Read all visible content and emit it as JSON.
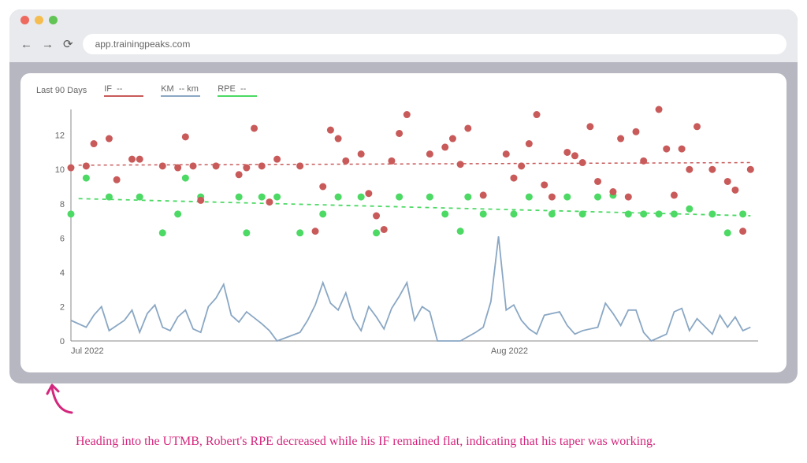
{
  "browser": {
    "url": "app.trainingpeaks.com",
    "traffic_lights": [
      "#ee6a5f",
      "#f5bd4f",
      "#61c454"
    ]
  },
  "chart": {
    "type": "scatter+line",
    "timeframe_label": "Last 90 Days",
    "background_color": "#ffffff",
    "axis_color": "#888",
    "grid_color": "#e0e0e0",
    "text_color": "#666",
    "label_fontsize": 11,
    "x_axis": {
      "ticks": [
        {
          "x": 0,
          "label": "Jul 2022"
        },
        {
          "x": 55,
          "label": "Aug 2022"
        }
      ],
      "xlim": [
        0,
        90
      ]
    },
    "y_axis": {
      "ylim": [
        0,
        13.5
      ],
      "ticks": [
        0,
        2,
        4,
        6,
        8,
        10,
        12
      ]
    },
    "series": {
      "IF": {
        "legend_label": "IF",
        "legend_value": "--",
        "color": "#c95a5a",
        "marker": "circle",
        "marker_size": 4.5,
        "trend": {
          "y_start": 10.25,
          "y_end": 10.4,
          "dash": "4,4",
          "width": 1.5
        },
        "points": [
          [
            0,
            10.1
          ],
          [
            2,
            10.2
          ],
          [
            3,
            11.5
          ],
          [
            5,
            11.8
          ],
          [
            6,
            9.4
          ],
          [
            8,
            10.6
          ],
          [
            9,
            10.6
          ],
          [
            12,
            10.2
          ],
          [
            14,
            10.1
          ],
          [
            15,
            11.9
          ],
          [
            16,
            10.2
          ],
          [
            17,
            8.2
          ],
          [
            19,
            10.2
          ],
          [
            22,
            9.7
          ],
          [
            23,
            10.1
          ],
          [
            24,
            12.4
          ],
          [
            25,
            10.2
          ],
          [
            26,
            8.1
          ],
          [
            27,
            10.6
          ],
          [
            30,
            10.2
          ],
          [
            32,
            6.4
          ],
          [
            33,
            9.0
          ],
          [
            34,
            12.3
          ],
          [
            35,
            11.8
          ],
          [
            36,
            10.5
          ],
          [
            38,
            10.9
          ],
          [
            39,
            8.6
          ],
          [
            40,
            7.3
          ],
          [
            41,
            6.5
          ],
          [
            42,
            10.5
          ],
          [
            43,
            12.1
          ],
          [
            44,
            13.2
          ],
          [
            47,
            10.9
          ],
          [
            49,
            11.3
          ],
          [
            50,
            11.8
          ],
          [
            51,
            10.3
          ],
          [
            52,
            12.4
          ],
          [
            54,
            8.5
          ],
          [
            57,
            10.9
          ],
          [
            58,
            9.5
          ],
          [
            59,
            10.2
          ],
          [
            60,
            11.5
          ],
          [
            61,
            13.2
          ],
          [
            62,
            9.1
          ],
          [
            63,
            8.4
          ],
          [
            65,
            11.0
          ],
          [
            66,
            10.8
          ],
          [
            67,
            10.4
          ],
          [
            68,
            12.5
          ],
          [
            69,
            9.3
          ],
          [
            71,
            8.7
          ],
          [
            72,
            11.8
          ],
          [
            73,
            8.4
          ],
          [
            74,
            12.2
          ],
          [
            75,
            10.5
          ],
          [
            77,
            13.5
          ],
          [
            78,
            11.2
          ],
          [
            79,
            8.5
          ],
          [
            80,
            11.2
          ],
          [
            81,
            10.0
          ],
          [
            82,
            12.5
          ],
          [
            84,
            10.0
          ],
          [
            86,
            9.3
          ],
          [
            87,
            8.8
          ],
          [
            88,
            6.4
          ],
          [
            89,
            10.0
          ]
        ]
      },
      "KM": {
        "legend_label": "KM",
        "legend_value": "-- km",
        "color": "#8aa7c4",
        "line_width": 1.8,
        "points": [
          [
            0,
            1.2
          ],
          [
            2,
            0.8
          ],
          [
            3,
            1.5
          ],
          [
            4,
            2.0
          ],
          [
            5,
            0.6
          ],
          [
            7,
            1.2
          ],
          [
            8,
            1.8
          ],
          [
            9,
            0.5
          ],
          [
            10,
            1.6
          ],
          [
            11,
            2.1
          ],
          [
            12,
            0.8
          ],
          [
            13,
            0.6
          ],
          [
            14,
            1.4
          ],
          [
            15,
            1.8
          ],
          [
            16,
            0.7
          ],
          [
            17,
            0.5
          ],
          [
            18,
            2.0
          ],
          [
            19,
            2.5
          ],
          [
            20,
            3.3
          ],
          [
            21,
            1.5
          ],
          [
            22,
            1.1
          ],
          [
            23,
            1.7
          ],
          [
            25,
            1.0
          ],
          [
            26,
            0.6
          ],
          [
            27,
            0
          ],
          [
            30,
            0.5
          ],
          [
            31,
            1.2
          ],
          [
            32,
            2.1
          ],
          [
            33,
            3.4
          ],
          [
            34,
            2.2
          ],
          [
            35,
            1.8
          ],
          [
            36,
            2.8
          ],
          [
            37,
            1.3
          ],
          [
            38,
            0.6
          ],
          [
            39,
            2.0
          ],
          [
            40,
            1.4
          ],
          [
            41,
            0.7
          ],
          [
            42,
            1.9
          ],
          [
            43,
            2.6
          ],
          [
            44,
            3.4
          ],
          [
            45,
            1.2
          ],
          [
            46,
            2.0
          ],
          [
            47,
            1.7
          ],
          [
            48,
            0
          ],
          [
            51,
            0
          ],
          [
            53,
            0.5
          ],
          [
            54,
            0.8
          ],
          [
            55,
            2.3
          ],
          [
            56,
            6.1
          ],
          [
            57,
            1.8
          ],
          [
            58,
            2.1
          ],
          [
            59,
            1.2
          ],
          [
            60,
            0.7
          ],
          [
            61,
            0.4
          ],
          [
            62,
            1.5
          ],
          [
            64,
            1.7
          ],
          [
            65,
            0.9
          ],
          [
            66,
            0.4
          ],
          [
            67,
            0.6
          ],
          [
            69,
            0.8
          ],
          [
            70,
            2.2
          ],
          [
            71,
            1.6
          ],
          [
            72,
            0.9
          ],
          [
            73,
            1.8
          ],
          [
            74,
            1.8
          ],
          [
            75,
            0.5
          ],
          [
            76,
            0
          ],
          [
            78,
            0.4
          ],
          [
            79,
            1.7
          ],
          [
            80,
            1.9
          ],
          [
            81,
            0.6
          ],
          [
            82,
            1.3
          ],
          [
            84,
            0.4
          ],
          [
            85,
            1.5
          ],
          [
            86,
            0.8
          ],
          [
            87,
            1.4
          ],
          [
            88,
            0.6
          ],
          [
            89,
            0.8
          ]
        ]
      },
      "RPE": {
        "legend_label": "RPE",
        "legend_value": "--",
        "color": "#4cd964",
        "marker": "circle",
        "marker_size": 4.5,
        "trend": {
          "y_start": 8.3,
          "y_end": 7.3,
          "dash": "5,5",
          "width": 1.8
        },
        "points": [
          [
            0,
            7.4
          ],
          [
            2,
            9.5
          ],
          [
            5,
            8.4
          ],
          [
            9,
            8.4
          ],
          [
            12,
            6.3
          ],
          [
            14,
            7.4
          ],
          [
            15,
            9.5
          ],
          [
            17,
            8.4
          ],
          [
            22,
            8.4
          ],
          [
            23,
            6.3
          ],
          [
            25,
            8.4
          ],
          [
            27,
            8.4
          ],
          [
            30,
            6.3
          ],
          [
            33,
            7.4
          ],
          [
            35,
            8.4
          ],
          [
            38,
            8.4
          ],
          [
            40,
            6.3
          ],
          [
            43,
            8.4
          ],
          [
            47,
            8.4
          ],
          [
            49,
            7.4
          ],
          [
            51,
            6.4
          ],
          [
            52,
            8.4
          ],
          [
            54,
            7.4
          ],
          [
            58,
            7.4
          ],
          [
            60,
            8.4
          ],
          [
            63,
            7.4
          ],
          [
            65,
            8.4
          ],
          [
            67,
            7.4
          ],
          [
            69,
            8.4
          ],
          [
            71,
            8.5
          ],
          [
            73,
            7.4
          ],
          [
            75,
            7.4
          ],
          [
            77,
            7.4
          ],
          [
            79,
            7.4
          ],
          [
            81,
            7.7
          ],
          [
            84,
            7.4
          ],
          [
            86,
            6.3
          ],
          [
            88,
            7.4
          ]
        ]
      }
    }
  },
  "annotation": {
    "text": "Heading into the UTMB, Robert's RPE decreased while his IF remained flat, indicating that his taper was working.",
    "color": "#d4267d",
    "font_family": "cursive",
    "font_size": 16
  }
}
